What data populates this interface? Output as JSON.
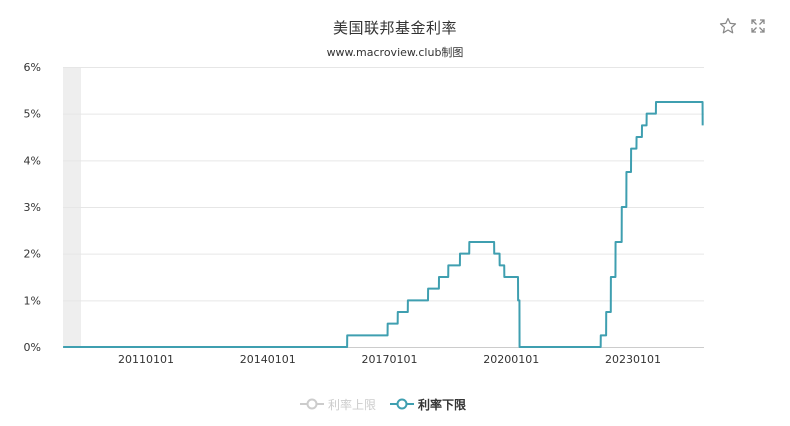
{
  "chart_data": {
    "type": "line",
    "title": "美国联邦基金利率",
    "subtitle": "www.macroview.club制图",
    "ylim": [
      0,
      6
    ],
    "y_ticks": [
      "0%",
      "1%",
      "2%",
      "3%",
      "4%",
      "5%",
      "6%"
    ],
    "x_ticks": [
      "20110101",
      "20140101",
      "20170101",
      "20200101",
      "20230101"
    ],
    "xlim": [
      "2008-12-15",
      "2024-10-01"
    ],
    "grid": true,
    "legend_position": "bottom",
    "series": [
      {
        "name": "利率上限",
        "visible": false,
        "color": "#cccccc",
        "points": []
      },
      {
        "name": "利率下限",
        "visible": true,
        "color": "#3f9fb0",
        "points": [
          [
            "2008-12-16",
            0.0
          ],
          [
            "2015-12-16",
            0.0
          ],
          [
            "2015-12-17",
            0.25
          ],
          [
            "2016-12-14",
            0.25
          ],
          [
            "2016-12-15",
            0.5
          ],
          [
            "2017-03-15",
            0.5
          ],
          [
            "2017-03-16",
            0.75
          ],
          [
            "2017-06-14",
            0.75
          ],
          [
            "2017-06-15",
            1.0
          ],
          [
            "2017-12-13",
            1.0
          ],
          [
            "2017-12-14",
            1.25
          ],
          [
            "2018-03-21",
            1.25
          ],
          [
            "2018-03-22",
            1.5
          ],
          [
            "2018-06-13",
            1.5
          ],
          [
            "2018-06-14",
            1.75
          ],
          [
            "2018-09-26",
            1.75
          ],
          [
            "2018-09-27",
            2.0
          ],
          [
            "2018-12-19",
            2.0
          ],
          [
            "2018-12-20",
            2.25
          ],
          [
            "2019-07-31",
            2.25
          ],
          [
            "2019-08-01",
            2.0
          ],
          [
            "2019-09-18",
            2.0
          ],
          [
            "2019-09-19",
            1.75
          ],
          [
            "2019-10-30",
            1.75
          ],
          [
            "2019-10-31",
            1.5
          ],
          [
            "2020-03-02",
            1.5
          ],
          [
            "2020-03-03",
            1.0
          ],
          [
            "2020-03-15",
            1.0
          ],
          [
            "2020-03-16",
            0.0
          ],
          [
            "2022-03-16",
            0.0
          ],
          [
            "2022-03-17",
            0.25
          ],
          [
            "2022-05-04",
            0.25
          ],
          [
            "2022-05-05",
            0.75
          ],
          [
            "2022-06-15",
            0.75
          ],
          [
            "2022-06-16",
            1.5
          ],
          [
            "2022-07-27",
            1.5
          ],
          [
            "2022-07-28",
            2.25
          ],
          [
            "2022-09-21",
            2.25
          ],
          [
            "2022-09-22",
            3.0
          ],
          [
            "2022-11-02",
            3.0
          ],
          [
            "2022-11-03",
            3.75
          ],
          [
            "2022-12-14",
            3.75
          ],
          [
            "2022-12-15",
            4.25
          ],
          [
            "2023-02-01",
            4.25
          ],
          [
            "2023-02-02",
            4.5
          ],
          [
            "2023-03-22",
            4.5
          ],
          [
            "2023-03-23",
            4.75
          ],
          [
            "2023-05-03",
            4.75
          ],
          [
            "2023-05-04",
            5.0
          ],
          [
            "2023-07-26",
            5.0
          ],
          [
            "2023-07-27",
            5.25
          ],
          [
            "2024-09-18",
            5.25
          ],
          [
            "2024-09-19",
            4.75
          ]
        ]
      }
    ]
  },
  "toolbar": {
    "favorite_icon": "star-icon",
    "fullscreen_icon": "expand-icon"
  },
  "colors": {
    "line": "#3f9fb0",
    "grid": "#e6e6e6",
    "axis_text": "#333333",
    "legend_inactive": "#cccccc",
    "start_band": "#eeeeee"
  }
}
